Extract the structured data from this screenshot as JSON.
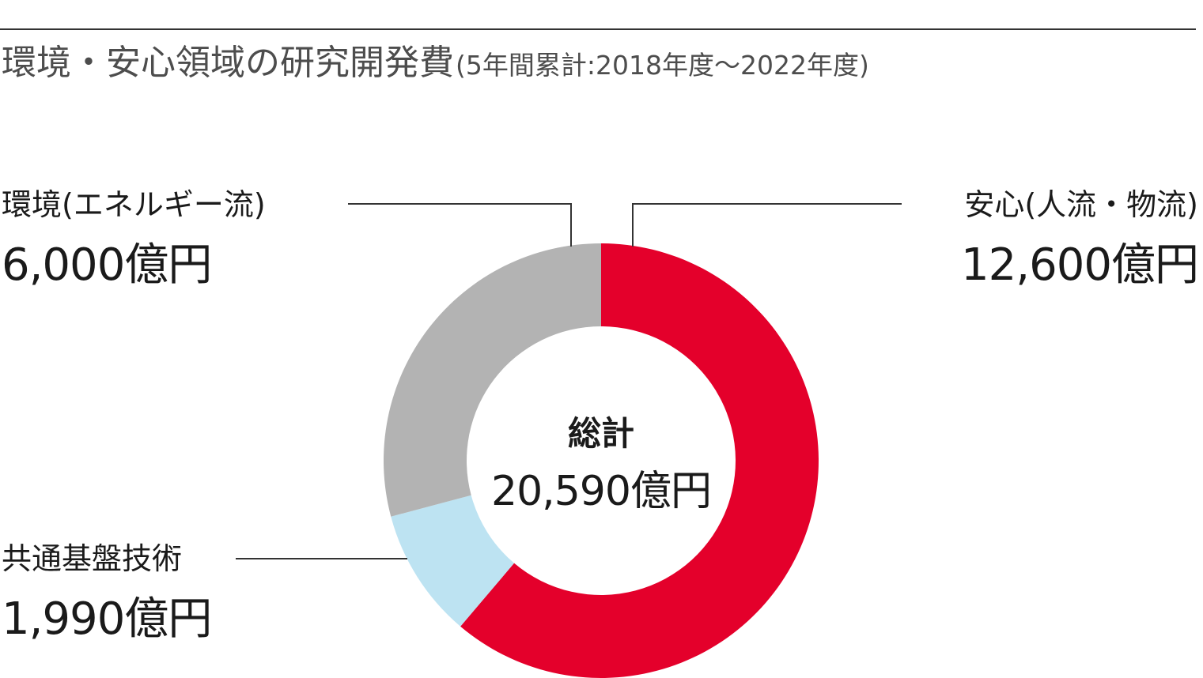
{
  "chart_data": {
    "type": "pie",
    "title": "環境・安心領域の研究開発費",
    "subtitle": "(5年間累計:2018年度〜2022年度)",
    "center_label": "総計",
    "center_value": "20,590億円",
    "total": 20590,
    "slices": [
      {
        "name": "安心(人流・物流)",
        "value": 12600,
        "value_label": "12,600億円",
        "color": "#e4002b"
      },
      {
        "name": "共通基盤技術",
        "value": 1990,
        "value_label": "1,990億円",
        "color": "#bde3f2"
      },
      {
        "name": "環境(エネルギー流)",
        "value": 6000,
        "value_label": "6,000億円",
        "color": "#b3b3b3"
      }
    ],
    "leader_line_color": "#333333"
  }
}
